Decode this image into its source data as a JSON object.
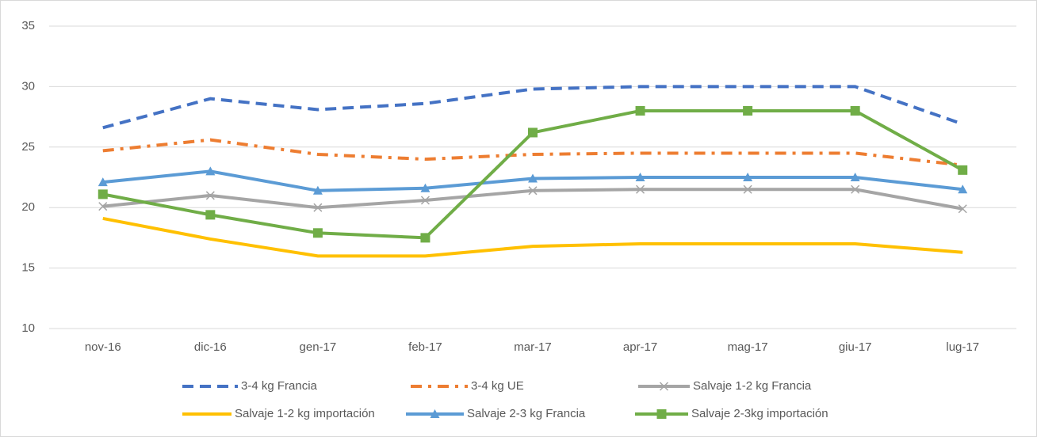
{
  "chart_data": {
    "type": "line",
    "categories": [
      "nov-16",
      "dic-16",
      "gen-17",
      "feb-17",
      "mar-17",
      "apr-17",
      "mag-17",
      "giu-17",
      "lug-17"
    ],
    "ylim": [
      10,
      35
    ],
    "yticks": [
      10,
      15,
      20,
      25,
      30,
      35
    ],
    "grid": true,
    "legend": "bottom",
    "series": [
      {
        "name": "3-4 kg Francia",
        "color": "#4472c4",
        "dash": "dashed",
        "marker": "none",
        "values": [
          26.6,
          29.0,
          28.1,
          28.6,
          29.8,
          30.0,
          30.0,
          30.0,
          26.9
        ]
      },
      {
        "name": "3-4 kg UE",
        "color": "#ed7d31",
        "dash": "dashdot",
        "marker": "none",
        "values": [
          24.7,
          25.6,
          24.4,
          24.0,
          24.4,
          24.5,
          24.5,
          24.5,
          23.5
        ]
      },
      {
        "name": "Salvaje 1-2 kg Francia",
        "color": "#a5a5a5",
        "dash": "solid",
        "marker": "x",
        "values": [
          20.1,
          21.0,
          20.0,
          20.6,
          21.4,
          21.5,
          21.5,
          21.5,
          19.9
        ]
      },
      {
        "name": "Salvaje 1-2 kg importación",
        "color": "#ffc000",
        "dash": "solid",
        "marker": "none",
        "values": [
          19.1,
          17.4,
          16.0,
          16.0,
          16.8,
          17.0,
          17.0,
          17.0,
          16.3
        ]
      },
      {
        "name": "Salvaje 2-3 kg Francia",
        "color": "#5b9bd5",
        "dash": "solid",
        "marker": "triangle",
        "values": [
          22.1,
          23.0,
          21.4,
          21.6,
          22.4,
          22.5,
          22.5,
          22.5,
          21.5
        ]
      },
      {
        "name": "Salvaje 2-3kg importación",
        "color": "#70ad47",
        "dash": "solid",
        "marker": "square",
        "values": [
          21.1,
          19.4,
          17.9,
          17.5,
          26.2,
          28.0,
          28.0,
          28.0,
          23.1
        ]
      }
    ]
  }
}
